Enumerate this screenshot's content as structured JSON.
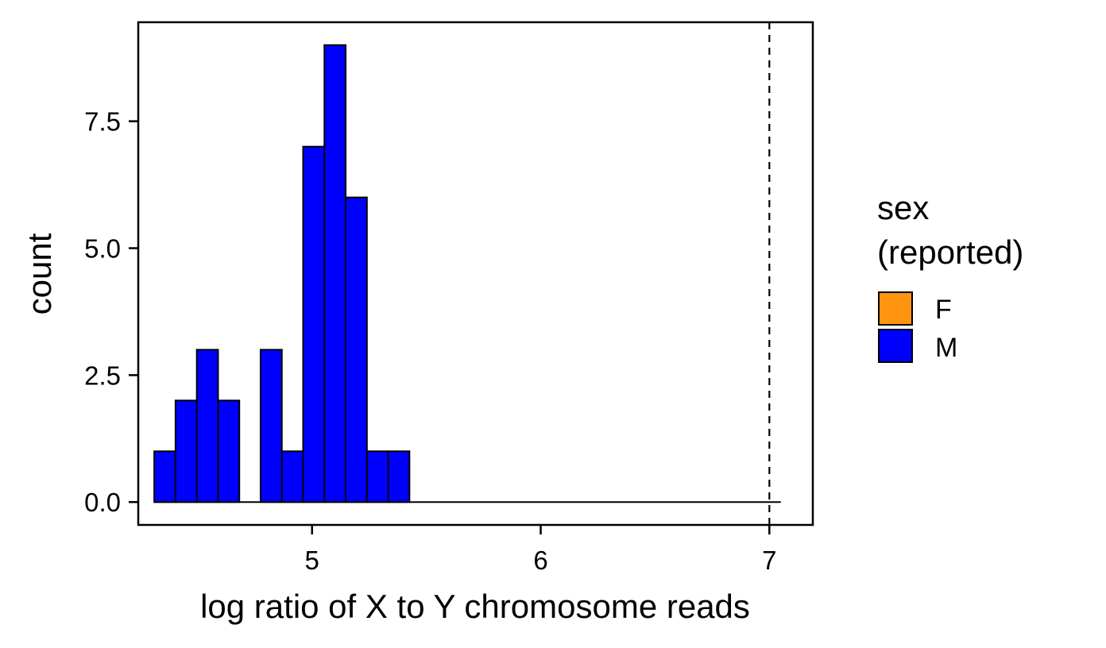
{
  "chart_data": {
    "type": "bar",
    "subtype": "histogram",
    "title": "",
    "xlabel": "log ratio of X to Y chromosome reads",
    "ylabel": "count",
    "xlim": [
      4.24,
      7.19
    ],
    "ylim": [
      -0.45,
      9.45
    ],
    "x_ticks": [
      5,
      6,
      7
    ],
    "x_tick_labels": [
      "5",
      "6",
      "7"
    ],
    "y_ticks": [
      0,
      2.5,
      5,
      7.5
    ],
    "y_tick_labels": [
      "0.0",
      "2.5",
      "5.0",
      "7.5"
    ],
    "grid": false,
    "bin_width": 0.093,
    "reference_line": {
      "x": 7.0,
      "style": "dashed"
    },
    "baseline_x_range": [
      4.31,
      7.05
    ],
    "legend": {
      "title_lines": [
        "sex",
        "(reported)"
      ],
      "placement": "right",
      "entries": [
        {
          "label": "F",
          "color": "#FF9410"
        },
        {
          "label": "M",
          "color": "#0000FF"
        }
      ]
    },
    "series": [
      {
        "name": "M",
        "color": "#0000FF",
        "bins": [
          {
            "x_start": 4.31,
            "count": 1
          },
          {
            "x_start": 4.403,
            "count": 2
          },
          {
            "x_start": 4.496,
            "count": 3
          },
          {
            "x_start": 4.589,
            "count": 2
          },
          {
            "x_start": 4.682,
            "count": 0
          },
          {
            "x_start": 4.775,
            "count": 3
          },
          {
            "x_start": 4.868,
            "count": 1
          },
          {
            "x_start": 4.961,
            "count": 7
          },
          {
            "x_start": 5.054,
            "count": 9
          },
          {
            "x_start": 5.147,
            "count": 6
          },
          {
            "x_start": 5.24,
            "count": 1
          },
          {
            "x_start": 5.333,
            "count": 1
          }
        ]
      },
      {
        "name": "F",
        "color": "#FF9410",
        "bins": []
      }
    ]
  }
}
